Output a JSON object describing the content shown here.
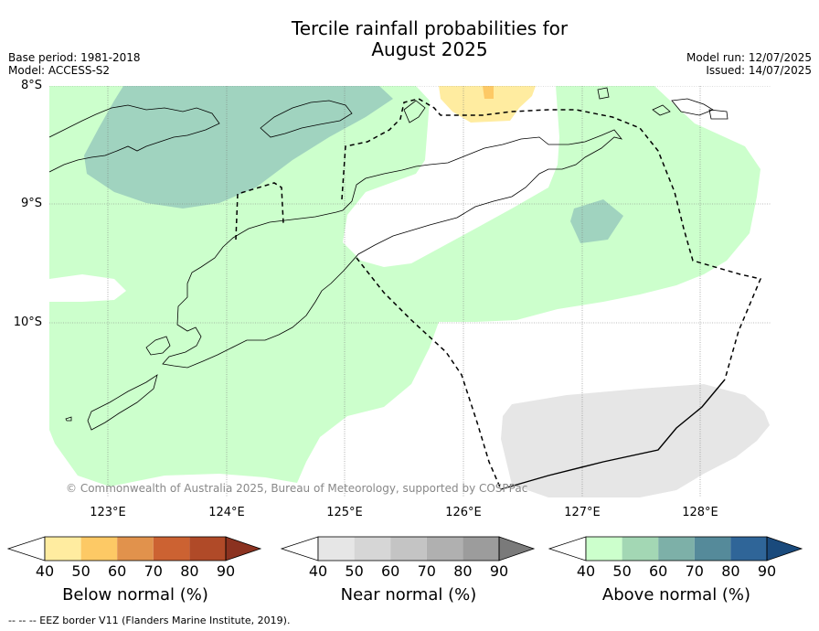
{
  "title_line1": "Tercile rainfall probabilities for",
  "title_line2": "August 2025",
  "meta_left": [
    "Base period: 1981-2018",
    "Model: ACCESS-S2"
  ],
  "meta_right": [
    "Model run: 12/07/2025",
    "Issued: 14/07/2025"
  ],
  "map": {
    "lat_labels": [
      "8°S",
      "9°S",
      "10°S"
    ],
    "lon_labels": [
      "123°E",
      "124°E",
      "125°E",
      "126°E",
      "127°E",
      "128°E"
    ],
    "lon_range": [
      122.5,
      128.6
    ],
    "lat_range": [
      -11.5,
      -8.0
    ],
    "copyright": "© Commonwealth of Australia 2025, Bureau of Meteorology, supported by COSPPac"
  },
  "colorbars": [
    {
      "title": "Below normal (%)",
      "ticks": [
        "40",
        "50",
        "60",
        "70",
        "80",
        "90"
      ],
      "colors": [
        "#ffffff",
        "#ffeca0",
        "#fdc965",
        "#e1924c",
        "#cc6232",
        "#b04a28",
        "#8b3220"
      ]
    },
    {
      "title": "Near normal (%)",
      "ticks": [
        "40",
        "50",
        "60",
        "70",
        "80",
        "90"
      ],
      "colors": [
        "#ffffff",
        "#e6e6e6",
        "#d6d6d6",
        "#c4c4c4",
        "#b0b0b0",
        "#9c9c9c",
        "#7a7a7a"
      ]
    },
    {
      "title": "Above normal (%)",
      "ticks": [
        "40",
        "50",
        "60",
        "70",
        "80",
        "90"
      ],
      "colors": [
        "#ffffff",
        "#ccffcc",
        "#a3d7b4",
        "#7db0a8",
        "#558a9a",
        "#2f6598",
        "#1a4a7c"
      ]
    }
  ],
  "footer": "--  --  -- EEZ border V11 (Flanders Marine Institute, 2019)."
}
